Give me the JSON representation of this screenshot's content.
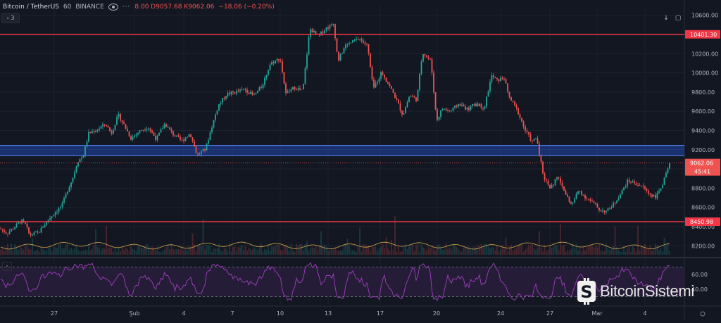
{
  "legend": {
    "symbol": "Bitcoin / TetherUS",
    "interval": "60",
    "exchange": "BINANCE",
    "ohlc_text": "8.00  D9057.68  K9062.06",
    "change_text": "−18.06 (−0.20%)",
    "collapse_label": "3"
  },
  "price_axis": {
    "ticks": [
      "10600.00",
      "10400.00",
      "10200.00",
      "10000.00",
      "9800.00",
      "9600.00",
      "9400.00",
      "9200.00",
      "9000.00",
      "8800.00",
      "8600.00",
      "8400.00",
      "8200.00"
    ],
    "tick_values": [
      10600,
      10400,
      10200,
      10000,
      9800,
      9600,
      9400,
      9200,
      9000,
      8800,
      8600,
      8400,
      8200
    ],
    "range": [
      8092,
      10700
    ]
  },
  "rsi_axis": {
    "ticks": [
      "60.00",
      "40.00"
    ],
    "tick_values": [
      60,
      40
    ],
    "range": [
      20,
      80
    ]
  },
  "time_axis": {
    "labels": [
      "27",
      "Şub",
      "4",
      "7",
      "10",
      "13",
      "17",
      "20",
      "24",
      "27",
      "Mar",
      "4"
    ]
  },
  "levels": {
    "resistance": {
      "value": 10401.3,
      "label": "10401.30",
      "color": "#f23645"
    },
    "support": {
      "value": 8450.98,
      "label": "8450.98",
      "color": "#f23645"
    },
    "zone": {
      "low": 9140,
      "high": 9245,
      "color": "#2962ff"
    },
    "last_price": {
      "value": 9062.06,
      "label": "9062.06",
      "countdown": "45:41",
      "color": "#ef5350"
    }
  },
  "chart_data": {
    "type": "candlestick",
    "symbol": "Bitcoin / TetherUS",
    "interval": "60",
    "x_labels": [
      "27",
      "Şub",
      "4",
      "7",
      "10",
      "13",
      "17",
      "20",
      "24",
      "27",
      "Mar",
      "4"
    ],
    "price_path_anchors": [
      [
        0,
        8380
      ],
      [
        10,
        8330
      ],
      [
        20,
        8390
      ],
      [
        30,
        8460
      ],
      [
        36,
        8420
      ],
      [
        42,
        8310
      ],
      [
        55,
        8340
      ],
      [
        68,
        8470
      ],
      [
        80,
        8560
      ],
      [
        88,
        8620
      ],
      [
        96,
        8780
      ],
      [
        104,
        8920
      ],
      [
        110,
        9080
      ],
      [
        118,
        9130
      ],
      [
        126,
        9370
      ],
      [
        138,
        9410
      ],
      [
        150,
        9470
      ],
      [
        158,
        9370
      ],
      [
        168,
        9560
      ],
      [
        176,
        9460
      ],
      [
        186,
        9320
      ],
      [
        198,
        9390
      ],
      [
        210,
        9440
      ],
      [
        222,
        9310
      ],
      [
        234,
        9470
      ],
      [
        246,
        9360
      ],
      [
        258,
        9290
      ],
      [
        270,
        9370
      ],
      [
        280,
        9140
      ],
      [
        292,
        9210
      ],
      [
        300,
        9420
      ],
      [
        310,
        9660
      ],
      [
        322,
        9780
      ],
      [
        335,
        9800
      ],
      [
        348,
        9830
      ],
      [
        360,
        9760
      ],
      [
        372,
        9860
      ],
      [
        384,
        10100
      ],
      [
        398,
        10150
      ],
      [
        406,
        9780
      ],
      [
        418,
        9850
      ],
      [
        430,
        9810
      ],
      [
        440,
        10460
      ],
      [
        452,
        10380
      ],
      [
        462,
        10460
      ],
      [
        474,
        10510
      ],
      [
        480,
        10120
      ],
      [
        490,
        10280
      ],
      [
        500,
        10320
      ],
      [
        510,
        10360
      ],
      [
        522,
        10280
      ],
      [
        530,
        9830
      ],
      [
        542,
        10010
      ],
      [
        552,
        9880
      ],
      [
        562,
        9740
      ],
      [
        572,
        9560
      ],
      [
        582,
        9770
      ],
      [
        592,
        9720
      ],
      [
        600,
        10220
      ],
      [
        612,
        10120
      ],
      [
        620,
        9500
      ],
      [
        628,
        9630
      ],
      [
        640,
        9600
      ],
      [
        652,
        9680
      ],
      [
        664,
        9620
      ],
      [
        676,
        9680
      ],
      [
        688,
        9640
      ],
      [
        698,
        9970
      ],
      [
        706,
        9920
      ],
      [
        716,
        9950
      ],
      [
        722,
        9760
      ],
      [
        734,
        9620
      ],
      [
        746,
        9400
      ],
      [
        756,
        9280
      ],
      [
        762,
        9330
      ],
      [
        772,
        8920
      ],
      [
        782,
        8800
      ],
      [
        792,
        8920
      ],
      [
        802,
        8760
      ],
      [
        812,
        8620
      ],
      [
        822,
        8780
      ],
      [
        832,
        8700
      ],
      [
        842,
        8650
      ],
      [
        852,
        8570
      ],
      [
        862,
        8560
      ],
      [
        872,
        8640
      ],
      [
        882,
        8750
      ],
      [
        892,
        8880
      ],
      [
        902,
        8850
      ],
      [
        912,
        8820
      ],
      [
        922,
        8740
      ],
      [
        932,
        8710
      ],
      [
        942,
        8860
      ],
      [
        952,
        9062
      ]
    ],
    "volume_style": "faint columns along bottom of price pane",
    "rsi_level_lines": [
      70,
      30
    ],
    "rsi_visible_range": [
      20,
      80
    ]
  },
  "watermark": {
    "text": "BitcoinSistemi"
  },
  "colors": {
    "background": "#131722",
    "up": "#26a69a",
    "down": "#ef5350",
    "rsi_line": "#a040c0",
    "rsi_band": "#2a1e3d",
    "grid": "#1e222d",
    "axis_text": "#b2b5be"
  },
  "icons": {
    "visibility": "eye-icon",
    "more": "more-dots-icon",
    "arrow_down": "arrow-down-icon",
    "maximize": "maximize-icon",
    "watermark_logo": "bitcoin-logo-icon"
  }
}
